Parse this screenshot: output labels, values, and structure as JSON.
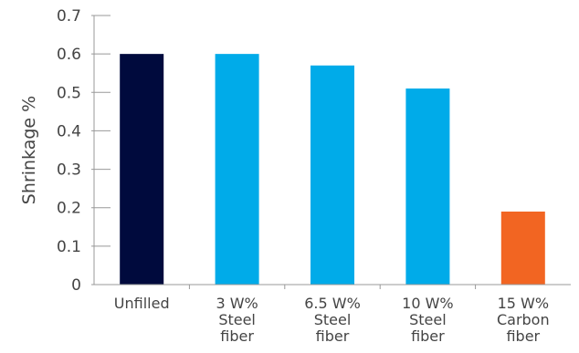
{
  "chart_data": {
    "type": "bar",
    "title": "",
    "xlabel": "",
    "ylabel": "Shrinkage %",
    "ylim": [
      0,
      0.7
    ],
    "yticks": [
      {
        "value": 0,
        "label": "0"
      },
      {
        "value": 0.1,
        "label": "0.1"
      },
      {
        "value": 0.2,
        "label": "0.2"
      },
      {
        "value": 0.3,
        "label": "0.3"
      },
      {
        "value": 0.4,
        "label": "0.4"
      },
      {
        "value": 0.5,
        "label": "0.5"
      },
      {
        "value": 0.6,
        "label": "0.6"
      },
      {
        "value": 0.7,
        "label": "0.7"
      }
    ],
    "categories": [
      [
        "Unfilled"
      ],
      [
        "3 W%",
        "Steel",
        "fiber"
      ],
      [
        "6.5 W%",
        "Steel",
        "fiber"
      ],
      [
        "10 W%",
        "Steel",
        "fiber"
      ],
      [
        "15 W%",
        "Carbon",
        "fiber"
      ]
    ],
    "values": [
      0.6,
      0.6,
      0.57,
      0.51,
      0.19
    ],
    "colors": [
      "#000a3d",
      "#00abe9",
      "#00abe9",
      "#00abe9",
      "#f26522"
    ],
    "grid": false,
    "legend": "none"
  }
}
